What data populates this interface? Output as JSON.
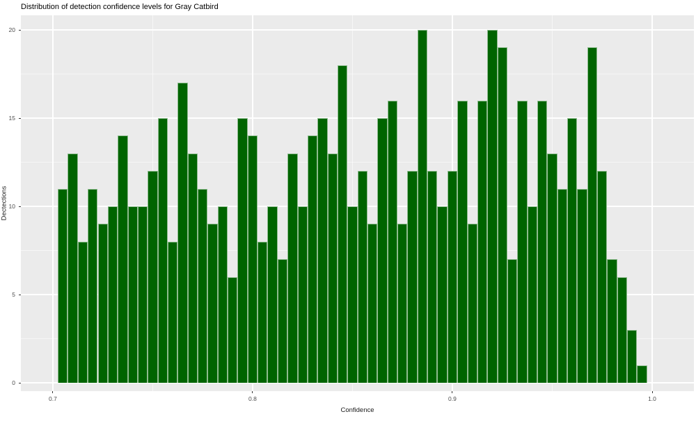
{
  "chart_data": {
    "type": "bar",
    "subtype": "histogram",
    "title": "Distribution of detection confidence levels for Gray Catbird",
    "xlabel": "Confidence",
    "ylabel": "Dectections",
    "x_ticks": [
      0.7,
      0.8,
      0.9,
      1.0
    ],
    "x_tick_labels": [
      "0.7",
      "0.8",
      "0.9",
      "1.0"
    ],
    "y_ticks": [
      0,
      5,
      10,
      15,
      20
    ],
    "y_tick_labels": [
      "0",
      "5",
      "10",
      "15",
      "20"
    ],
    "x_minor_gridlines": [
      0.75,
      0.85,
      0.95
    ],
    "y_minor_gridlines": [
      2.5,
      7.5,
      12.5,
      17.5
    ],
    "xlim": [
      0.684,
      1.0209
    ],
    "ylim": [
      -0.47,
      20.83
    ],
    "bin_width": 0.005,
    "first_bin_left_edge": 0.7025,
    "counts": [
      11,
      13,
      8,
      11,
      9,
      10,
      14,
      10,
      10,
      12,
      15,
      8,
      17,
      13,
      11,
      9,
      10,
      6,
      15,
      14,
      8,
      10,
      7,
      13,
      10,
      14,
      15,
      13,
      18,
      10,
      12,
      9,
      15,
      16,
      9,
      12,
      20,
      12,
      10,
      12,
      16,
      9,
      16,
      20,
      19,
      7,
      16,
      10,
      16,
      13,
      11,
      15,
      11,
      19,
      12,
      7,
      6,
      3,
      1
    ],
    "grid": "on",
    "legend": "none",
    "colors": {
      "bar_fill": "#006400",
      "bar_border": "#8FBC8F",
      "panel_bg": "#EBEBEB",
      "grid_major": "#FFFFFF",
      "grid_minor": "rgba(255,255,255,0.55)",
      "tick_mark": "#333333",
      "tick_label": "#4D4D4D",
      "axis_title": "#1A1A1A",
      "title": "#000000",
      "background": "#FFFFFF"
    }
  }
}
